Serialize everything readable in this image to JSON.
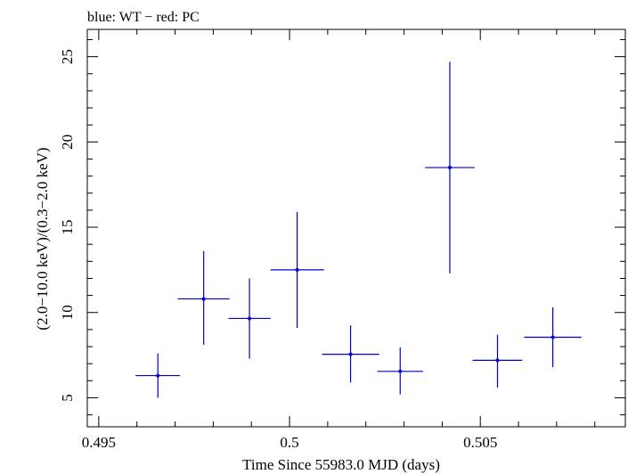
{
  "chart_data": {
    "type": "scatter",
    "title": "blue: WT − red: PC",
    "xlabel": "Time Since 55983.0 MJD (days)",
    "ylabel": "(2.0−10.0 keV)/(0.3−2.0 keV)",
    "xlim": [
      0.4947,
      0.5088
    ],
    "ylim": [
      3.3,
      26.6
    ],
    "xticks": [
      {
        "value": 0.495,
        "label": "0.495"
      },
      {
        "value": 0.5,
        "label": "0.5"
      },
      {
        "value": 0.505,
        "label": "0.505"
      }
    ],
    "yticks": [
      {
        "value": 5,
        "label": "5"
      },
      {
        "value": 10,
        "label": "10"
      },
      {
        "value": 15,
        "label": "15"
      },
      {
        "value": 20,
        "label": "20"
      },
      {
        "value": 25,
        "label": "25"
      }
    ],
    "grid": false,
    "series": [
      {
        "color": "#0000cc",
        "points": [
          {
            "x": 0.49655,
            "xerr": 0.00058,
            "y": 6.3,
            "ylo": 5.0,
            "yhi": 7.6
          },
          {
            "x": 0.49775,
            "xerr": 0.00068,
            "y": 10.8,
            "ylo": 8.1,
            "yhi": 13.6
          },
          {
            "x": 0.49895,
            "xerr": 0.00055,
            "y": 9.65,
            "ylo": 7.3,
            "yhi": 12.0
          },
          {
            "x": 0.5002,
            "xerr": 0.0007,
            "y": 12.5,
            "ylo": 9.1,
            "yhi": 15.9
          },
          {
            "x": 0.5016,
            "xerr": 0.00075,
            "y": 7.55,
            "ylo": 5.9,
            "yhi": 9.25
          },
          {
            "x": 0.5029,
            "xerr": 0.0006,
            "y": 6.55,
            "ylo": 5.2,
            "yhi": 7.95
          },
          {
            "x": 0.5042,
            "xerr": 0.00065,
            "y": 18.5,
            "ylo": 12.3,
            "yhi": 24.7
          },
          {
            "x": 0.50545,
            "xerr": 0.00065,
            "y": 7.2,
            "ylo": 5.6,
            "yhi": 8.7
          },
          {
            "x": 0.5069,
            "xerr": 0.00075,
            "y": 8.55,
            "ylo": 6.8,
            "yhi": 10.3
          }
        ]
      }
    ]
  }
}
